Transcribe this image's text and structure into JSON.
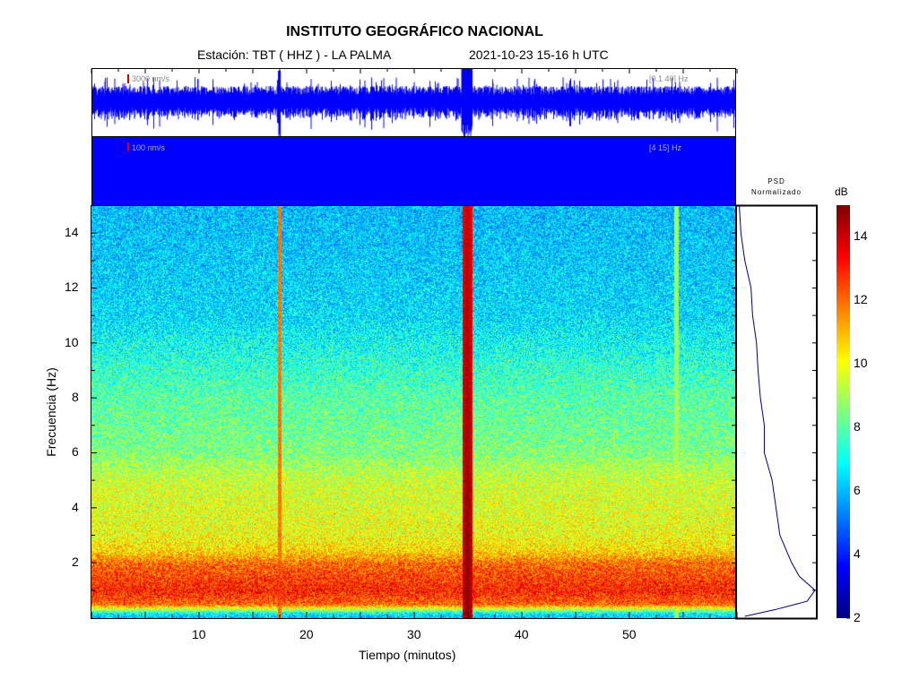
{
  "header": {
    "title": "INSTITUTO GEOGRÁFICO NACIONAL",
    "station": "Estación:  TBT ( HHZ ) - LA PALMA",
    "datetime": "2021-10-23  15-16 h UTC"
  },
  "traces": [
    {
      "scale_label": "3000 nm/s",
      "band_label": "[0.1 40] Hz",
      "color": "#0000ff"
    },
    {
      "scale_label": "100 nm/s",
      "band_label": "[4 15] Hz",
      "color": "#0000ff"
    }
  ],
  "chart_data": {
    "type": "heatmap",
    "colormap": "jet",
    "xlabel": "Tiempo (minutos)",
    "ylabel": "Frecuencia (Hz)",
    "xlim": [
      0,
      60
    ],
    "ylim": [
      0,
      15
    ],
    "xticks": [
      "10",
      "20",
      "30",
      "40",
      "50"
    ],
    "yticks": [
      "2",
      "4",
      "6",
      "8",
      "10",
      "12",
      "14"
    ],
    "mean_db_by_frequency": {
      "f": [
        0,
        0.2,
        0.5,
        1,
        2,
        2.5,
        3,
        5,
        6,
        8,
        11,
        15
      ],
      "db": [
        6,
        7,
        12,
        13,
        12,
        10.5,
        10,
        9.5,
        8.5,
        8,
        6.5,
        6
      ]
    },
    "events": [
      {
        "time_min": 17.5,
        "db": 12
      },
      {
        "time_min": 35,
        "db": 15
      },
      {
        "time_min": 54.5,
        "db": 9
      }
    ],
    "psd": {
      "title": "PSD\nNormalizado",
      "title_line1": "PSD",
      "title_line2": "Normalizado",
      "f": [
        0.05,
        0.3,
        0.6,
        1,
        1.5,
        2,
        3,
        4,
        5,
        6,
        7,
        8,
        9,
        10,
        11,
        12,
        13,
        14,
        15
      ],
      "value": [
        0.1,
        0.5,
        0.9,
        1.0,
        0.8,
        0.7,
        0.55,
        0.5,
        0.45,
        0.35,
        0.35,
        0.3,
        0.27,
        0.25,
        0.2,
        0.18,
        0.1,
        0.05,
        0.03
      ]
    },
    "colorbar": {
      "label": "dB",
      "range": [
        2,
        15
      ],
      "ticks": [
        "2",
        "4",
        "6",
        "8",
        "10",
        "12",
        "14"
      ]
    }
  }
}
